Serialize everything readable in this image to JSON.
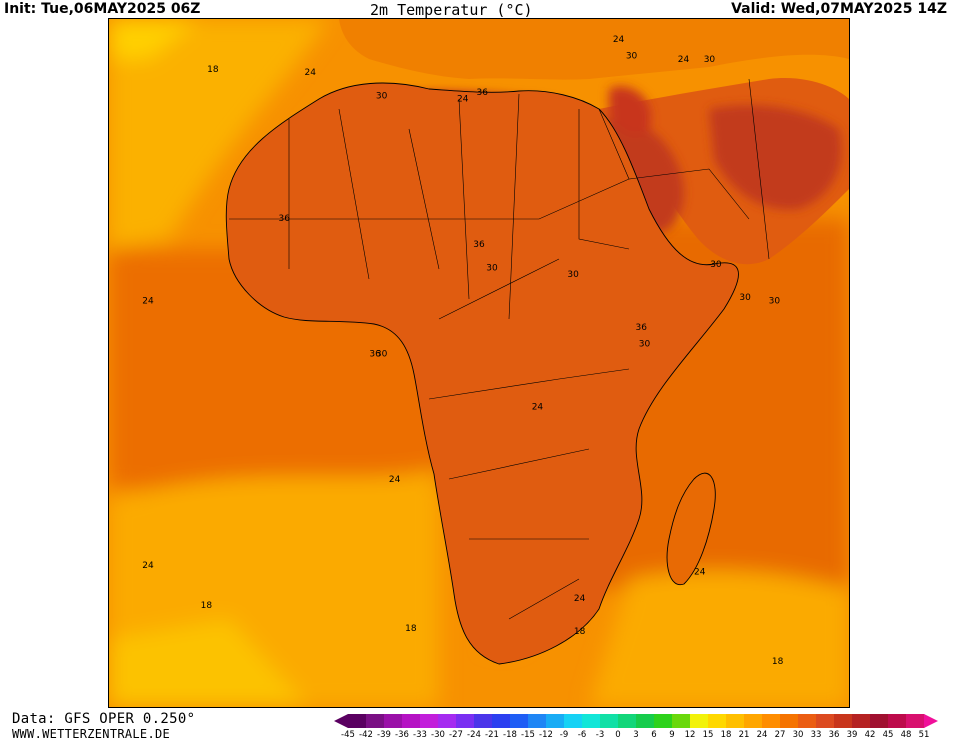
{
  "header": {
    "init": "Init: Tue,06MAY2025 06Z",
    "title": "2m Temperatur (°C)",
    "valid": "Valid: Wed,07MAY2025 14Z"
  },
  "footer": {
    "data_source": "Data: GFS OPER 0.250°",
    "site": "WWW.WETTERZENTRALE.DE"
  },
  "legend": {
    "values": [
      "-45",
      "-42",
      "-39",
      "-36",
      "-33",
      "-30",
      "-27",
      "-24",
      "-21",
      "-18",
      "-15",
      "-12",
      "-9",
      "-6",
      "-3",
      "0",
      "3",
      "6",
      "9",
      "12",
      "15",
      "18",
      "21",
      "24",
      "27",
      "30",
      "33",
      "36",
      "39",
      "42",
      "45",
      "48",
      "51"
    ],
    "colors": [
      "#5a0061",
      "#7a0f84",
      "#9a10a8",
      "#b512c4",
      "#c21fdb",
      "#a52bf0",
      "#7a2ff2",
      "#4b35ea",
      "#2b3ff0",
      "#1f5ef5",
      "#1f86f5",
      "#19acf5",
      "#16d2f5",
      "#12e6d8",
      "#11e0a6",
      "#12d67a",
      "#16cc4c",
      "#2dd21c",
      "#6ad80c",
      "#f2f20a",
      "#ffd800",
      "#ffbf00",
      "#ffa600",
      "#ff8d00",
      "#f57300",
      "#eb5d12",
      "#dc4a20",
      "#c8351c",
      "#b52222",
      "#a01030",
      "#bd0b4b",
      "#d8106e",
      "#f0109a"
    ]
  },
  "map": {
    "colors": {
      "ocean_cool": "#fbaa00",
      "ocean_mid": "#f79100",
      "ocean_warm": "#ec6e06",
      "land_warm": "#e05c10",
      "land_hot": "#c23a1f",
      "land_very_hot": "#aa1128",
      "land_extreme": "#b00c44",
      "mild": "#fcc200",
      "cool": "#ffd000"
    },
    "contour_labels": [
      {
        "text": "18",
        "lon": -32.0,
        "lat": 40.0
      },
      {
        "text": "24",
        "lon": -17.0,
        "lat": 39.5
      },
      {
        "text": "30",
        "lon": -6.0,
        "lat": 36.0
      },
      {
        "text": "24",
        "lon": 6.5,
        "lat": 35.5
      },
      {
        "text": "36",
        "lon": 9.5,
        "lat": 36.5
      },
      {
        "text": "24",
        "lon": 30.5,
        "lat": 44.5
      },
      {
        "text": "30",
        "lon": 32.5,
        "lat": 42.0
      },
      {
        "text": "24",
        "lon": 40.5,
        "lat": 41.5
      },
      {
        "text": "30",
        "lon": 44.5,
        "lat": 41.5
      },
      {
        "text": "36",
        "lon": -21.0,
        "lat": 17.5
      },
      {
        "text": "24",
        "lon": -42.0,
        "lat": 5.0
      },
      {
        "text": "36",
        "lon": 9.0,
        "lat": 13.5
      },
      {
        "text": "30",
        "lon": 11.0,
        "lat": 10.0
      },
      {
        "text": "30",
        "lon": 23.5,
        "lat": 9.0
      },
      {
        "text": "30",
        "lon": 45.5,
        "lat": 10.5
      },
      {
        "text": "30",
        "lon": 50.0,
        "lat": 5.5
      },
      {
        "text": "30",
        "lon": 54.5,
        "lat": 5.0
      },
      {
        "text": "36",
        "lon": 34.0,
        "lat": 1.0
      },
      {
        "text": "30",
        "lon": 34.5,
        "lat": -1.5
      },
      {
        "text": "36",
        "lon": -7.0,
        "lat": -3.0
      },
      {
        "text": "30",
        "lon": -6.0,
        "lat": -3.0
      },
      {
        "text": "24",
        "lon": 18.0,
        "lat": -11.0
      },
      {
        "text": "24",
        "lon": -4.0,
        "lat": -22.0
      },
      {
        "text": "24",
        "lon": -42.0,
        "lat": -35.0
      },
      {
        "text": "24",
        "lon": 43.0,
        "lat": -36.0
      },
      {
        "text": "24",
        "lon": 24.5,
        "lat": -40.0
      },
      {
        "text": "18",
        "lon": -33.0,
        "lat": -41.0
      },
      {
        "text": "18",
        "lon": -1.5,
        "lat": -44.5
      },
      {
        "text": "18",
        "lon": 24.5,
        "lat": -45.0
      },
      {
        "text": "18",
        "lon": 55.0,
        "lat": -49.5
      }
    ]
  }
}
